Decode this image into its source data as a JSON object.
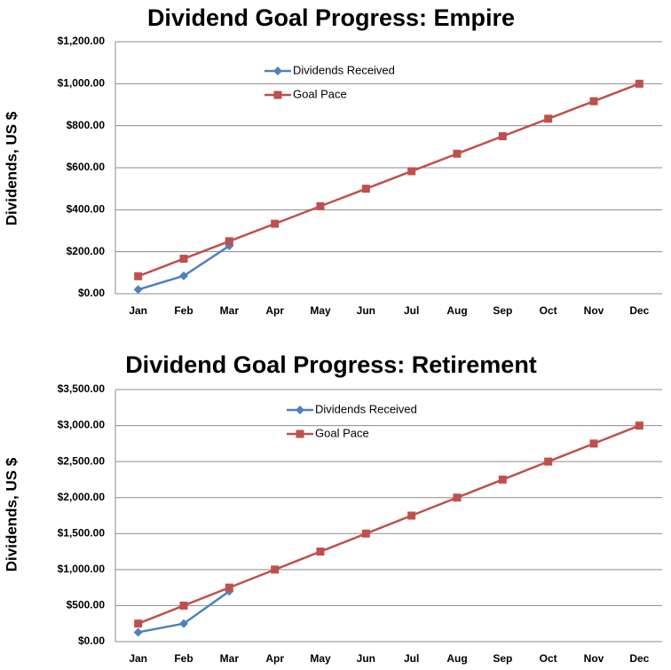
{
  "chart_data": [
    {
      "type": "line",
      "title": "Dividend Goal Progress: Empire",
      "y_label": "Dividends, US $",
      "categories": [
        "Jan",
        "Feb",
        "Mar",
        "Apr",
        "May",
        "Jun",
        "Jul",
        "Aug",
        "Sep",
        "Oct",
        "Nov",
        "Dec"
      ],
      "series": [
        {
          "name": "Dividends Received",
          "color": "#4f81bd",
          "marker": "diamond",
          "values": [
            20,
            85,
            228,
            null,
            null,
            null,
            null,
            null,
            null,
            null,
            null,
            null
          ]
        },
        {
          "name": "Goal Pace",
          "color": "#c0504d",
          "marker": "square",
          "values": [
            83.33,
            166.67,
            250,
            333.33,
            416.67,
            500,
            583.33,
            666.67,
            750,
            833.33,
            916.67,
            1000
          ]
        }
      ],
      "ylim": [
        0,
        1200
      ],
      "yticks": [
        {
          "value": 0,
          "label": "$0.00"
        },
        {
          "value": 200,
          "label": "$200.00"
        },
        {
          "value": 400,
          "label": "$400.00"
        },
        {
          "value": 600,
          "label": "$600.00"
        },
        {
          "value": 800,
          "label": "$800.00"
        },
        {
          "value": 1000,
          "label": "$1,000.00"
        },
        {
          "value": 1200,
          "label": "$1,200.00"
        }
      ],
      "grid": true
    },
    {
      "type": "line",
      "title": "Dividend Goal Progress: Retirement",
      "y_label": "Dividends, US $",
      "categories": [
        "Jan",
        "Feb",
        "Mar",
        "Apr",
        "May",
        "Jun",
        "Jul",
        "Aug",
        "Sep",
        "Oct",
        "Nov",
        "Dec"
      ],
      "series": [
        {
          "name": "Dividends Received",
          "color": "#4f81bd",
          "marker": "diamond",
          "values": [
            130,
            250,
            700,
            null,
            null,
            null,
            null,
            null,
            null,
            null,
            null,
            null
          ]
        },
        {
          "name": "Goal Pace",
          "color": "#c0504d",
          "marker": "square",
          "values": [
            250,
            500,
            750,
            1000,
            1250,
            1500,
            1750,
            2000,
            2250,
            2500,
            2750,
            3000
          ]
        }
      ],
      "ylim": [
        0,
        3500
      ],
      "yticks": [
        {
          "value": 0,
          "label": "$0.00"
        },
        {
          "value": 500,
          "label": "$500.00"
        },
        {
          "value": 1000,
          "label": "$1,000.00"
        },
        {
          "value": 1500,
          "label": "$1,500.00"
        },
        {
          "value": 2000,
          "label": "$2,000.00"
        },
        {
          "value": 2500,
          "label": "$2,500.00"
        },
        {
          "value": 3000,
          "label": "$3,000.00"
        },
        {
          "value": 3500,
          "label": "$3,500.00"
        }
      ],
      "grid": true
    }
  ]
}
